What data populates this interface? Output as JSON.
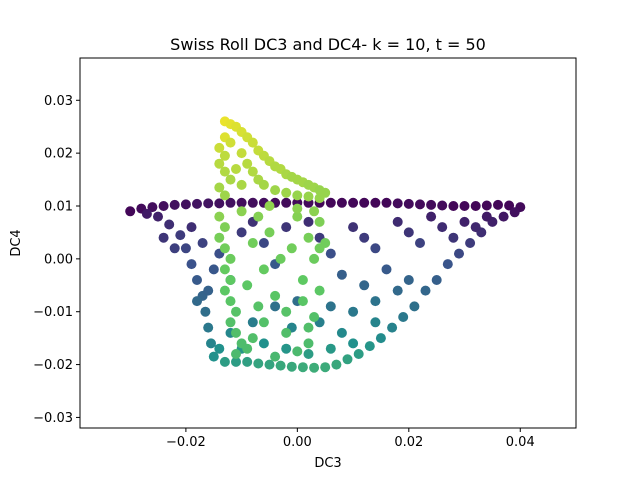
{
  "chart_data": {
    "type": "scatter",
    "title": "Swiss Roll DC3 and DC4- k = 10, t = 50",
    "xlabel": "DC3",
    "ylabel": "DC4",
    "xlim": [
      -0.039,
      0.05
    ],
    "ylim": [
      -0.032,
      0.038
    ],
    "xticks": [
      -0.02,
      0.0,
      0.02,
      0.04
    ],
    "xtick_labels": [
      "−0.02",
      "0.00",
      "0.02",
      "0.04"
    ],
    "yticks": [
      -0.03,
      -0.02,
      -0.01,
      0.0,
      0.01,
      0.02,
      0.03
    ],
    "ytick_labels": [
      "−0.03",
      "−0.02",
      "−0.01",
      "0.00",
      "0.01",
      "0.02",
      "0.03"
    ],
    "grid": false,
    "colormap": "viridis",
    "colormap_stops": [
      "#440154",
      "#3b528b",
      "#21918c",
      "#5ec962",
      "#fde725"
    ],
    "points": [
      [
        -0.03,
        0.009,
        0.02
      ],
      [
        -0.028,
        0.0095,
        0.03
      ],
      [
        -0.026,
        0.0098,
        0.04
      ],
      [
        -0.024,
        0.01,
        0.04
      ],
      [
        -0.022,
        0.0102,
        0.05
      ],
      [
        -0.02,
        0.0103,
        0.05
      ],
      [
        -0.018,
        0.0104,
        0.06
      ],
      [
        -0.016,
        0.0105,
        0.06
      ],
      [
        -0.014,
        0.0105,
        0.05
      ],
      [
        -0.012,
        0.0106,
        0.05
      ],
      [
        -0.01,
        0.0106,
        0.04
      ],
      [
        -0.008,
        0.0106,
        0.04
      ],
      [
        -0.006,
        0.0106,
        0.04
      ],
      [
        -0.004,
        0.0106,
        0.03
      ],
      [
        -0.002,
        0.0106,
        0.03
      ],
      [
        0.0,
        0.0106,
        0.03
      ],
      [
        0.002,
        0.0106,
        0.03
      ],
      [
        0.004,
        0.0106,
        0.02
      ],
      [
        0.006,
        0.0106,
        0.02
      ],
      [
        0.008,
        0.0106,
        0.02
      ],
      [
        0.01,
        0.0106,
        0.02
      ],
      [
        0.012,
        0.0106,
        0.02
      ],
      [
        0.014,
        0.0106,
        0.02
      ],
      [
        0.016,
        0.0106,
        0.02
      ],
      [
        0.018,
        0.0105,
        0.03
      ],
      [
        0.02,
        0.0104,
        0.03
      ],
      [
        0.022,
        0.0103,
        0.03
      ],
      [
        0.024,
        0.0102,
        0.03
      ],
      [
        0.026,
        0.0101,
        0.03
      ],
      [
        0.028,
        0.01,
        0.02
      ],
      [
        0.03,
        0.01,
        0.02
      ],
      [
        0.032,
        0.01,
        0.02
      ],
      [
        0.034,
        0.0101,
        0.02
      ],
      [
        0.036,
        0.0102,
        0.02
      ],
      [
        0.038,
        0.0101,
        0.02
      ],
      [
        0.04,
        0.0098,
        0.03
      ],
      [
        -0.027,
        0.0085,
        0.08
      ],
      [
        -0.025,
        0.008,
        0.1
      ],
      [
        -0.023,
        0.0065,
        0.14
      ],
      [
        -0.021,
        0.0045,
        0.18
      ],
      [
        -0.02,
        0.002,
        0.21
      ],
      [
        -0.019,
        -0.001,
        0.25
      ],
      [
        -0.018,
        -0.004,
        0.28
      ],
      [
        -0.017,
        -0.007,
        0.32
      ],
      [
        -0.0165,
        -0.01,
        0.36
      ],
      [
        -0.016,
        -0.013,
        0.4
      ],
      [
        -0.0155,
        -0.016,
        0.45
      ],
      [
        -0.015,
        -0.0185,
        0.5
      ],
      [
        -0.013,
        -0.0195,
        0.55
      ],
      [
        -0.011,
        -0.0195,
        0.55
      ],
      [
        -0.009,
        -0.0195,
        0.56
      ],
      [
        -0.007,
        -0.0198,
        0.58
      ],
      [
        -0.005,
        -0.02,
        0.58
      ],
      [
        -0.003,
        -0.0202,
        0.6
      ],
      [
        -0.001,
        -0.0204,
        0.6
      ],
      [
        0.001,
        -0.0205,
        0.61
      ],
      [
        0.003,
        -0.0206,
        0.62
      ],
      [
        0.005,
        -0.0205,
        0.61
      ],
      [
        0.007,
        -0.02,
        0.6
      ],
      [
        0.009,
        -0.019,
        0.57
      ],
      [
        0.011,
        -0.018,
        0.55
      ],
      [
        0.013,
        -0.0165,
        0.52
      ],
      [
        0.015,
        -0.015,
        0.48
      ],
      [
        0.017,
        -0.013,
        0.44
      ],
      [
        0.019,
        -0.011,
        0.4
      ],
      [
        0.021,
        -0.009,
        0.37
      ],
      [
        0.023,
        -0.006,
        0.33
      ],
      [
        0.025,
        -0.004,
        0.3
      ],
      [
        0.027,
        -0.001,
        0.26
      ],
      [
        0.029,
        0.001,
        0.22
      ],
      [
        0.031,
        0.003,
        0.18
      ],
      [
        0.033,
        0.005,
        0.14
      ],
      [
        0.035,
        0.007,
        0.1
      ],
      [
        0.037,
        0.008,
        0.07
      ],
      [
        0.039,
        0.0088,
        0.05
      ],
      [
        -0.024,
        0.004,
        0.16
      ],
      [
        -0.022,
        0.002,
        0.19
      ],
      [
        -0.019,
        0.006,
        0.14
      ],
      [
        -0.017,
        0.003,
        0.2
      ],
      [
        -0.015,
        -0.002,
        0.27
      ],
      [
        -0.014,
        0.001,
        0.24
      ],
      [
        -0.018,
        -0.008,
        0.34
      ],
      [
        -0.016,
        -0.006,
        0.31
      ],
      [
        -0.012,
        -0.004,
        0.3
      ],
      [
        -0.01,
        0.005,
        0.18
      ],
      [
        -0.008,
        0.007,
        0.15
      ],
      [
        -0.006,
        0.003,
        0.22
      ],
      [
        -0.004,
        -0.001,
        0.28
      ],
      [
        -0.002,
        0.006,
        0.16
      ],
      [
        0.002,
        0.007,
        0.14
      ],
      [
        0.004,
        0.004,
        0.18
      ],
      [
        0.006,
        0.001,
        0.24
      ],
      [
        0.008,
        -0.003,
        0.3
      ],
      [
        0.01,
        0.006,
        0.15
      ],
      [
        0.012,
        0.004,
        0.18
      ],
      [
        0.014,
        0.002,
        0.22
      ],
      [
        0.016,
        -0.002,
        0.28
      ],
      [
        0.018,
        0.007,
        0.13
      ],
      [
        0.02,
        0.005,
        0.16
      ],
      [
        0.022,
        0.003,
        0.2
      ],
      [
        0.024,
        0.008,
        0.1
      ],
      [
        0.026,
        0.006,
        0.13
      ],
      [
        0.028,
        0.004,
        0.16
      ],
      [
        0.03,
        0.007,
        0.1
      ],
      [
        0.032,
        0.006,
        0.12
      ],
      [
        0.034,
        0.008,
        0.08
      ],
      [
        0.018,
        -0.006,
        0.34
      ],
      [
        0.014,
        -0.008,
        0.38
      ],
      [
        0.01,
        -0.01,
        0.4
      ],
      [
        0.006,
        -0.009,
        0.38
      ],
      [
        0.004,
        -0.012,
        0.43
      ],
      [
        0.0,
        -0.008,
        0.36
      ],
      [
        -0.004,
        -0.009,
        0.37
      ],
      [
        -0.008,
        -0.012,
        0.42
      ],
      [
        -0.012,
        -0.014,
        0.46
      ],
      [
        -0.014,
        -0.017,
        0.5
      ],
      [
        -0.01,
        -0.017,
        0.52
      ],
      [
        -0.006,
        -0.016,
        0.5
      ],
      [
        -0.002,
        -0.017,
        0.52
      ],
      [
        0.002,
        -0.018,
        0.55
      ],
      [
        0.006,
        -0.017,
        0.53
      ],
      [
        0.01,
        -0.016,
        0.5
      ],
      [
        0.014,
        -0.012,
        0.45
      ],
      [
        0.02,
        -0.004,
        0.32
      ],
      [
        0.012,
        -0.005,
        0.33
      ],
      [
        -0.001,
        -0.013,
        0.45
      ],
      [
        0.008,
        -0.014,
        0.47
      ],
      [
        -0.013,
        0.026,
        0.97
      ],
      [
        -0.012,
        0.0255,
        0.96
      ],
      [
        -0.011,
        0.025,
        0.95
      ],
      [
        -0.01,
        0.024,
        0.94
      ],
      [
        -0.013,
        0.023,
        0.95
      ],
      [
        -0.012,
        0.022,
        0.93
      ],
      [
        -0.014,
        0.021,
        0.92
      ],
      [
        -0.013,
        0.0195,
        0.9
      ],
      [
        -0.014,
        0.018,
        0.89
      ],
      [
        -0.013,
        0.0165,
        0.88
      ],
      [
        -0.012,
        0.015,
        0.87
      ],
      [
        -0.014,
        0.0135,
        0.86
      ],
      [
        -0.013,
        0.012,
        0.85
      ],
      [
        -0.009,
        0.023,
        0.93
      ],
      [
        -0.008,
        0.022,
        0.92
      ],
      [
        -0.007,
        0.0205,
        0.91
      ],
      [
        -0.006,
        0.0195,
        0.9
      ],
      [
        -0.005,
        0.0185,
        0.89
      ],
      [
        -0.004,
        0.0175,
        0.88
      ],
      [
        -0.003,
        0.017,
        0.88
      ],
      [
        -0.002,
        0.016,
        0.87
      ],
      [
        -0.001,
        0.0155,
        0.86
      ],
      [
        0.0,
        0.015,
        0.86
      ],
      [
        0.001,
        0.0145,
        0.86
      ],
      [
        0.002,
        0.014,
        0.85
      ],
      [
        0.003,
        0.0135,
        0.85
      ],
      [
        0.004,
        0.013,
        0.84
      ],
      [
        0.005,
        0.0125,
        0.84
      ],
      [
        -0.01,
        0.02,
        0.91
      ],
      [
        -0.009,
        0.018,
        0.89
      ],
      [
        -0.008,
        0.0165,
        0.88
      ],
      [
        -0.007,
        0.015,
        0.87
      ],
      [
        -0.011,
        0.017,
        0.89
      ],
      [
        -0.01,
        0.014,
        0.87
      ],
      [
        -0.006,
        0.014,
        0.86
      ],
      [
        -0.004,
        0.013,
        0.85
      ],
      [
        -0.002,
        0.0125,
        0.85
      ],
      [
        0.0,
        0.012,
        0.84
      ],
      [
        0.002,
        0.0118,
        0.84
      ],
      [
        0.004,
        0.0115,
        0.84
      ],
      [
        -0.014,
        0.008,
        0.82
      ],
      [
        -0.013,
        0.006,
        0.8
      ],
      [
        -0.014,
        0.004,
        0.79
      ],
      [
        -0.013,
        0.002,
        0.78
      ],
      [
        -0.012,
        0.0,
        0.77
      ],
      [
        -0.013,
        -0.002,
        0.76
      ],
      [
        -0.012,
        -0.004,
        0.75
      ],
      [
        -0.013,
        -0.006,
        0.74
      ],
      [
        -0.012,
        -0.008,
        0.73
      ],
      [
        -0.011,
        -0.01,
        0.72
      ],
      [
        -0.012,
        -0.012,
        0.71
      ],
      [
        -0.011,
        -0.014,
        0.7
      ],
      [
        -0.01,
        -0.016,
        0.69
      ],
      [
        -0.011,
        -0.018,
        0.68
      ],
      [
        -0.009,
        -0.005,
        0.74
      ],
      [
        -0.008,
        0.003,
        0.78
      ],
      [
        -0.007,
        0.008,
        0.81
      ],
      [
        -0.006,
        -0.002,
        0.76
      ],
      [
        -0.005,
        0.005,
        0.79
      ],
      [
        -0.004,
        -0.007,
        0.73
      ],
      [
        -0.003,
        0.0,
        0.77
      ],
      [
        -0.002,
        -0.01,
        0.72
      ],
      [
        -0.001,
        0.002,
        0.78
      ],
      [
        0.0,
        0.008,
        0.81
      ],
      [
        0.001,
        -0.004,
        0.75
      ],
      [
        0.002,
        0.004,
        0.79
      ],
      [
        0.003,
        0.0,
        0.77
      ],
      [
        0.004,
        0.007,
        0.8
      ],
      [
        0.005,
        0.003,
        0.78
      ],
      [
        0.001,
        -0.008,
        0.73
      ],
      [
        0.003,
        -0.011,
        0.71
      ],
      [
        -0.002,
        -0.014,
        0.7
      ],
      [
        0.002,
        -0.016,
        0.69
      ],
      [
        -0.006,
        -0.012,
        0.71
      ],
      [
        -0.008,
        -0.015,
        0.7
      ],
      [
        0.004,
        -0.006,
        0.74
      ],
      [
        -0.01,
        0.009,
        0.82
      ],
      [
        -0.005,
        0.01,
        0.83
      ],
      [
        0.0,
        0.0095,
        0.82
      ],
      [
        0.003,
        0.009,
        0.82
      ],
      [
        0.004,
        0.002,
        0.78
      ],
      [
        -0.009,
        -0.017,
        0.69
      ],
      [
        0.0,
        -0.0175,
        0.68
      ],
      [
        -0.004,
        -0.0185,
        0.67
      ],
      [
        -0.007,
        -0.009,
        0.72
      ],
      [
        0.002,
        -0.013,
        0.7
      ]
    ]
  }
}
